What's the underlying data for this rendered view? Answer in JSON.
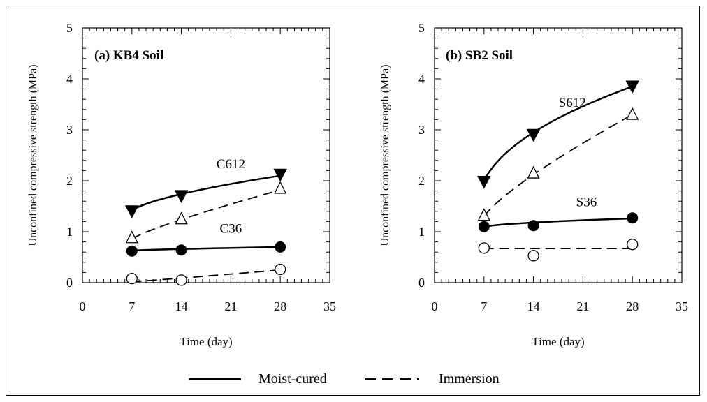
{
  "legend": {
    "moist_label": "Moist-cured",
    "immersion_label": "Immersion"
  },
  "chart_data": [
    {
      "type": "scatter",
      "panel_title": "(a) KB4 Soil",
      "xlabel": "Time (day)",
      "ylabel": "Unconfined compressive strength (MPa)",
      "xlim": [
        0,
        35
      ],
      "ylim": [
        0,
        5
      ],
      "xticks": [
        "0",
        "7",
        "14",
        "21",
        "28",
        "35"
      ],
      "yticks": [
        "0",
        "1",
        "2",
        "3",
        "4",
        "5"
      ],
      "grid": false,
      "series": [
        {
          "label": "C612",
          "x": [
            7,
            14,
            28
          ],
          "y": [
            1.4,
            1.7,
            2.12
          ],
          "marker": "triangle-down-filled",
          "line": "solid",
          "fit": [
            1.42,
            1.74,
            2.1
          ]
        },
        {
          "label": "",
          "x": [
            7,
            14,
            28
          ],
          "y": [
            0.88,
            1.25,
            1.85
          ],
          "marker": "triangle-up-open",
          "line": "dashed",
          "fit": [
            0.86,
            1.24,
            1.82
          ]
        },
        {
          "label": "C36",
          "x": [
            7,
            14,
            28
          ],
          "y": [
            0.62,
            0.64,
            0.7
          ],
          "marker": "circle-filled",
          "line": "solid",
          "fit": [
            0.63,
            0.66,
            0.7
          ]
        },
        {
          "label": "",
          "x": [
            7,
            14,
            28
          ],
          "y": [
            0.08,
            0.05,
            0.26
          ],
          "marker": "circle-open",
          "line": "dashed",
          "fit": [
            0.02,
            0.09,
            0.25
          ]
        }
      ],
      "series_labels": [
        {
          "text": "C612",
          "at": [
            21,
            2.25
          ]
        },
        {
          "text": "C36",
          "at": [
            21,
            0.98
          ]
        }
      ]
    },
    {
      "type": "scatter",
      "panel_title": "(b) SB2 Soil",
      "xlabel": "Time (day)",
      "ylabel": "Unconfined compressive strength (MPa)",
      "xlim": [
        0,
        35
      ],
      "ylim": [
        0,
        5
      ],
      "xticks": [
        "0",
        "7",
        "14",
        "21",
        "28",
        "35"
      ],
      "yticks": [
        "0",
        "1",
        "2",
        "3",
        "4",
        "5"
      ],
      "grid": false,
      "series": [
        {
          "label": "S612",
          "x": [
            7,
            14,
            28
          ],
          "y": [
            1.98,
            2.9,
            3.85
          ],
          "marker": "triangle-down-filled",
          "line": "solid",
          "fit": [
            2.0,
            2.95,
            3.85
          ]
        },
        {
          "label": "",
          "x": [
            7,
            14,
            28
          ],
          "y": [
            1.32,
            2.15,
            3.3
          ],
          "marker": "triangle-up-open",
          "line": "dashed",
          "fit": [
            1.3,
            2.12,
            3.3
          ]
        },
        {
          "label": "S36",
          "x": [
            7,
            14,
            28
          ],
          "y": [
            1.1,
            1.12,
            1.27
          ],
          "marker": "circle-filled",
          "line": "solid",
          "fit": [
            1.1,
            1.18,
            1.26
          ]
        },
        {
          "label": "",
          "x": [
            7,
            14,
            28
          ],
          "y": [
            0.68,
            0.53,
            0.75
          ],
          "marker": "circle-open",
          "line": "dashed",
          "fit": [
            0.67,
            0.67,
            0.67
          ]
        }
      ],
      "series_labels": [
        {
          "text": "S612",
          "at": [
            19.5,
            3.45
          ]
        },
        {
          "text": "S36",
          "at": [
            21.5,
            1.5
          ]
        }
      ]
    }
  ]
}
